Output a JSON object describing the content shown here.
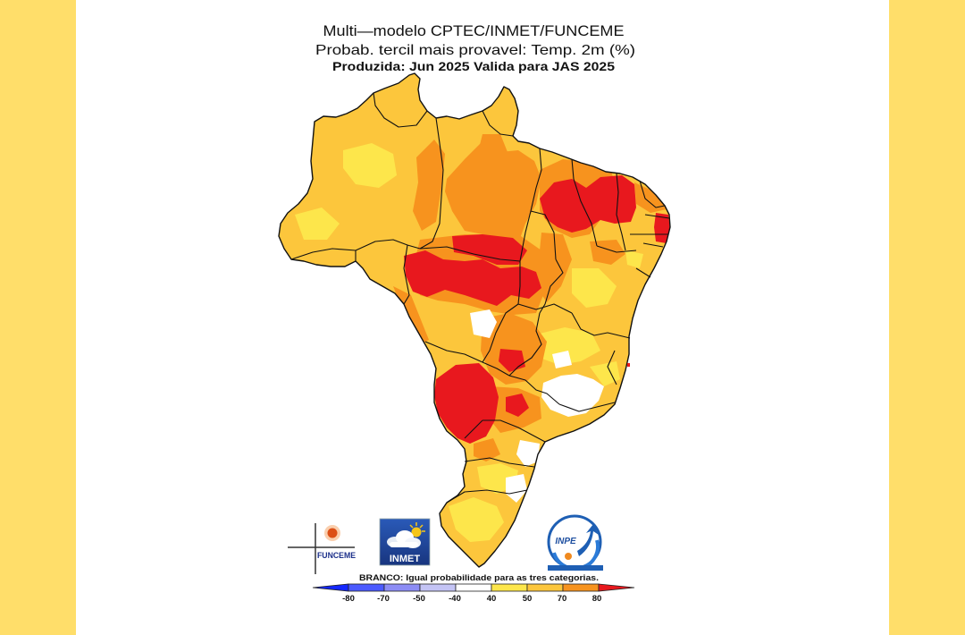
{
  "page": {
    "background": "#ffde6a",
    "panel": "#ffffff"
  },
  "title": {
    "line1": "Multi—modelo CPTEC/INMET/FUNCEME",
    "line2": "Probab. tercil mais provavel: Temp. 2m (%)",
    "line3": "Produzida: Jun 2025  Valida para JAS 2025"
  },
  "logos": {
    "funceme": "FUNCEME",
    "inmet": "INMET",
    "inpe": "INPE"
  },
  "legend": {
    "caption": "BRANCO: Igual probabilidade para as tres categorias.",
    "ticks": [
      "-80",
      "-70",
      "-50",
      "-40",
      "40",
      "50",
      "70",
      "80"
    ],
    "colors": [
      "#1428ff",
      "#4b5aff",
      "#8c8cf5",
      "#c4c4f5",
      "#ffffff",
      "#fde64b",
      "#fcc63c",
      "#f7931e",
      "#e8181e"
    ]
  },
  "map": {
    "border_color": "#111111"
  }
}
